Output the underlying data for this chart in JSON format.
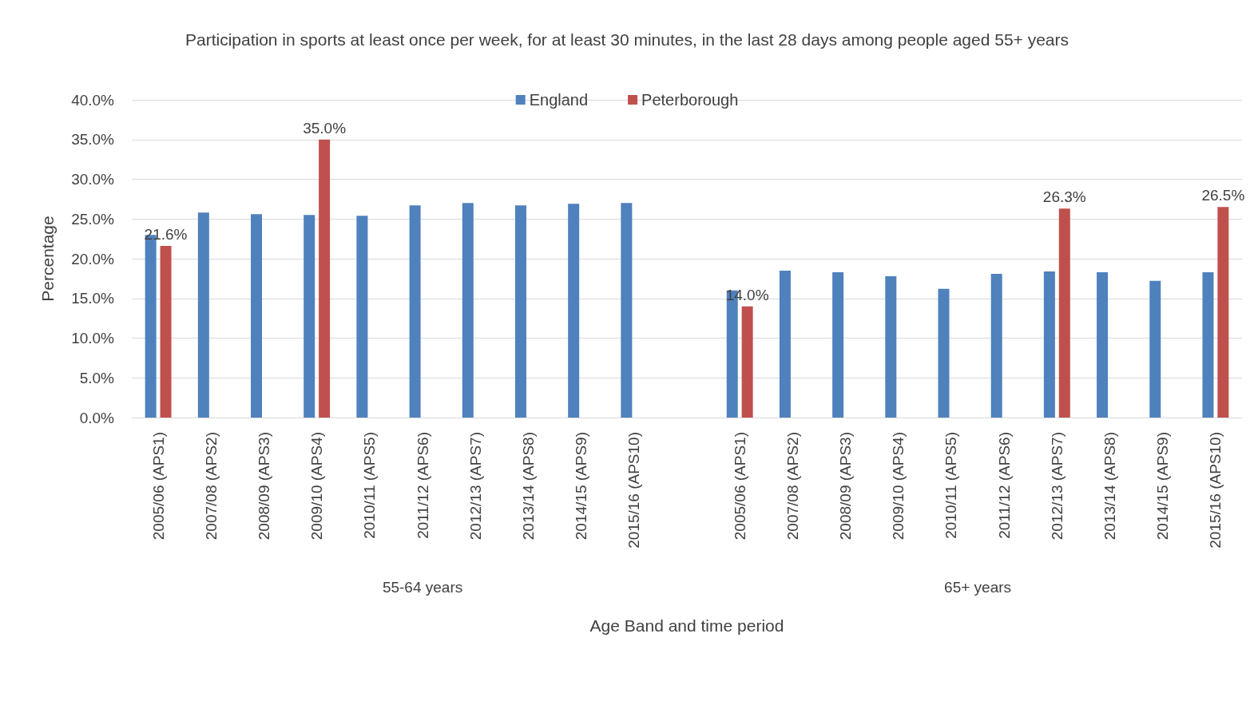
{
  "chart_data": {
    "type": "bar",
    "title": "Participation in sports at least once per week, for at least 30 minutes, in the last 28 days among people aged 55+ years",
    "xlabel": "Age Band and time period",
    "ylabel": "Percentage",
    "categories": [
      "2005/06 (APS1)",
      "2007/08 (APS2)",
      "2008/09 (APS3)",
      "2009/10 (APS4)",
      "2010/11 (APS5)",
      "2011/12 (APS6)",
      "2012/13 (APS7)",
      "2013/14 (APS8)",
      "2014/15 (APS9)",
      "2015/16 (APS10)",
      null,
      "2005/06 (APS1)",
      "2007/08 (APS2)",
      "2008/09 (APS3)",
      "2009/10 (APS4)",
      "2010/11 (APS5)",
      "2011/12 (APS6)",
      "2012/13 (APS7)",
      "2013/14 (APS8)",
      "2014/15 (APS9)",
      "2015/16 (APS10)"
    ],
    "series": [
      {
        "name": "England",
        "color": "#4f81bd",
        "values": [
          23.0,
          25.8,
          25.6,
          25.5,
          25.4,
          26.7,
          27.0,
          26.7,
          26.9,
          27.0,
          null,
          16.0,
          18.5,
          18.3,
          17.8,
          16.2,
          18.1,
          18.4,
          18.3,
          17.2,
          18.3
        ]
      },
      {
        "name": "Peterborough",
        "color": "#c0504d",
        "values": [
          21.6,
          null,
          null,
          35.0,
          null,
          null,
          null,
          null,
          null,
          null,
          null,
          14.0,
          null,
          null,
          null,
          null,
          null,
          26.3,
          null,
          null,
          26.5
        ],
        "value_labels": [
          "21.6%",
          null,
          null,
          "35.0%",
          null,
          null,
          null,
          null,
          null,
          null,
          null,
          "14.0%",
          null,
          null,
          null,
          null,
          null,
          "26.3%",
          null,
          null,
          "26.5%"
        ]
      }
    ],
    "annotations": [
      "55-64 years",
      "65+ years"
    ],
    "ylim": [
      0,
      40
    ],
    "yticks": [
      {
        "value": 0,
        "label": "0.0%"
      },
      {
        "value": 5,
        "label": "5.0%"
      },
      {
        "value": 10,
        "label": "10.0%"
      },
      {
        "value": 15,
        "label": "15.0%"
      },
      {
        "value": 20,
        "label": "20.0%"
      },
      {
        "value": 25,
        "label": "25.0%"
      },
      {
        "value": 30,
        "label": "30.0%"
      },
      {
        "value": 35,
        "label": "35.0%"
      },
      {
        "value": 40,
        "label": "40.0%"
      }
    ],
    "grid": "y",
    "legend": "top"
  }
}
